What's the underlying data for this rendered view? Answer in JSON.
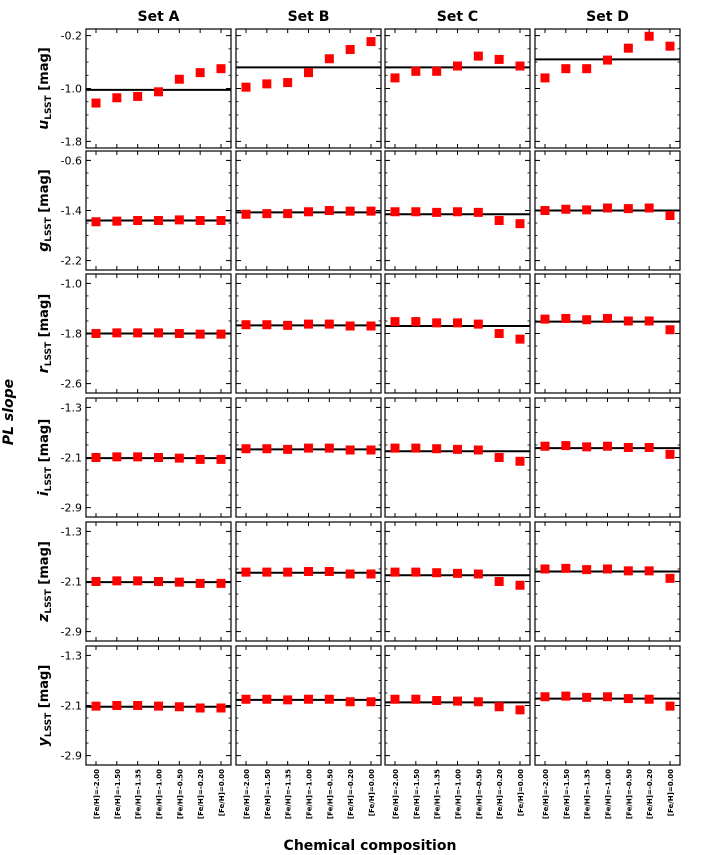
{
  "chart_data": {
    "type": "scatter",
    "grid_layout": "6 rows x 4 columns",
    "xlabel": "Chemical composition",
    "ylabel": "PL slope",
    "columns": [
      "Set A",
      "Set B",
      "Set C",
      "Set D"
    ],
    "categories": [
      "[Fe/H]=-2.00",
      "[Fe/H]=-1.50",
      "[Fe/H]=-1.35",
      "[Fe/H]=-1.00",
      "[Fe/H]=-0.50",
      "[Fe/H]=-0.20",
      "[Fe/H]=0.00"
    ],
    "marker_color": "#ff0000",
    "line_color": "#000000",
    "rows": [
      {
        "band": "u",
        "subscript": "LSST",
        "unit": "[mag]",
        "ylim": [
          -1.9,
          -0.1
        ],
        "yticks": [
          "-0.2",
          "-1.0",
          "-1.8"
        ],
        "sets": [
          {
            "values": [
              -1.22,
              -1.14,
              -1.12,
              -1.05,
              -0.86,
              -0.76,
              -0.7
            ],
            "line": -1.02
          },
          {
            "values": [
              -0.98,
              -0.93,
              -0.91,
              -0.76,
              -0.55,
              -0.41,
              -0.29
            ],
            "line": -0.68
          },
          {
            "values": [
              -0.84,
              -0.74,
              -0.74,
              -0.66,
              -0.51,
              -0.56,
              -0.66
            ],
            "line": -0.68
          },
          {
            "values": [
              -0.84,
              -0.7,
              -0.7,
              -0.57,
              -0.39,
              -0.21,
              -0.36
            ],
            "line": -0.56
          }
        ]
      },
      {
        "band": "g",
        "subscript": "LSST",
        "unit": "[mag]",
        "ylim": [
          -2.35,
          -0.45
        ],
        "yticks": [
          "-0.6",
          "-1.4",
          "-2.2"
        ],
        "sets": [
          {
            "values": [
              -1.58,
              -1.57,
              -1.56,
              -1.56,
              -1.55,
              -1.56,
              -1.56
            ],
            "line": -1.56
          },
          {
            "values": [
              -1.46,
              -1.45,
              -1.45,
              -1.42,
              -1.4,
              -1.41,
              -1.41
            ],
            "line": -1.43
          },
          {
            "values": [
              -1.42,
              -1.42,
              -1.43,
              -1.42,
              -1.43,
              -1.56,
              -1.61
            ],
            "line": -1.46
          },
          {
            "values": [
              -1.4,
              -1.38,
              -1.39,
              -1.36,
              -1.37,
              -1.36,
              -1.48
            ],
            "line": -1.4
          }
        ]
      },
      {
        "band": "r",
        "subscript": "LSST",
        "unit": "[mag]",
        "ylim": [
          -2.75,
          -0.85
        ],
        "yticks": [
          "-1.0",
          "-1.8",
          "-2.6"
        ],
        "sets": [
          {
            "values": [
              -1.8,
              -1.79,
              -1.79,
              -1.79,
              -1.8,
              -1.81,
              -1.81
            ],
            "line": -1.8
          },
          {
            "values": [
              -1.66,
              -1.66,
              -1.67,
              -1.65,
              -1.65,
              -1.68,
              -1.68
            ],
            "line": -1.67
          },
          {
            "values": [
              -1.61,
              -1.61,
              -1.63,
              -1.63,
              -1.65,
              -1.8,
              -1.89
            ],
            "line": -1.68
          },
          {
            "values": [
              -1.57,
              -1.56,
              -1.58,
              -1.56,
              -1.6,
              -1.6,
              -1.74
            ],
            "line": -1.61
          }
        ]
      },
      {
        "band": "i",
        "subscript": "LSST",
        "unit": "[mag]",
        "ylim": [
          -3.05,
          -1.15
        ],
        "yticks": [
          "-1.3",
          "-2.1",
          "-2.9"
        ],
        "sets": [
          {
            "values": [
              -2.1,
              -2.09,
              -2.09,
              -2.1,
              -2.11,
              -2.13,
              -2.13
            ],
            "line": -2.11
          },
          {
            "values": [
              -1.96,
              -1.96,
              -1.97,
              -1.95,
              -1.95,
              -1.98,
              -1.98
            ],
            "line": -1.97
          },
          {
            "values": [
              -1.95,
              -1.95,
              -1.96,
              -1.97,
              -1.98,
              -2.1,
              -2.16
            ],
            "line": -2.0
          },
          {
            "values": [
              -1.92,
              -1.91,
              -1.93,
              -1.92,
              -1.94,
              -1.94,
              -2.05
            ],
            "line": -1.95
          }
        ]
      },
      {
        "band": "z",
        "subscript": "LSST",
        "unit": "[mag]",
        "ylim": [
          -3.05,
          -1.15
        ],
        "yticks": [
          "-1.3",
          "-2.1",
          "-2.9"
        ],
        "sets": [
          {
            "values": [
              -2.1,
              -2.09,
              -2.09,
              -2.1,
              -2.11,
              -2.13,
              -2.13
            ],
            "line": -2.11
          },
          {
            "values": [
              -1.95,
              -1.95,
              -1.95,
              -1.94,
              -1.94,
              -1.98,
              -1.98
            ],
            "line": -1.96
          },
          {
            "values": [
              -1.95,
              -1.95,
              -1.96,
              -1.97,
              -1.98,
              -2.1,
              -2.16
            ],
            "line": -2.0
          },
          {
            "values": [
              -1.9,
              -1.89,
              -1.91,
              -1.9,
              -1.93,
              -1.93,
              -2.05
            ],
            "line": -1.94
          }
        ]
      },
      {
        "band": "y",
        "subscript": "LSST",
        "unit": "[mag]",
        "ylim": [
          -3.05,
          -1.15
        ],
        "yticks": [
          "-1.3",
          "-2.1",
          "-2.9"
        ],
        "sets": [
          {
            "values": [
              -2.11,
              -2.1,
              -2.1,
              -2.11,
              -2.12,
              -2.14,
              -2.14
            ],
            "line": -2.12
          },
          {
            "values": [
              -2.0,
              -2.0,
              -2.01,
              -2.0,
              -2.0,
              -2.04,
              -2.04
            ],
            "line": -2.01
          },
          {
            "values": [
              -2.0,
              -2.0,
              -2.02,
              -2.03,
              -2.04,
              -2.12,
              -2.17
            ],
            "line": -2.05
          },
          {
            "values": [
              -1.96,
              -1.95,
              -1.97,
              -1.96,
              -1.99,
              -2.0,
              -2.11
            ],
            "line": -1.99
          }
        ]
      }
    ]
  }
}
